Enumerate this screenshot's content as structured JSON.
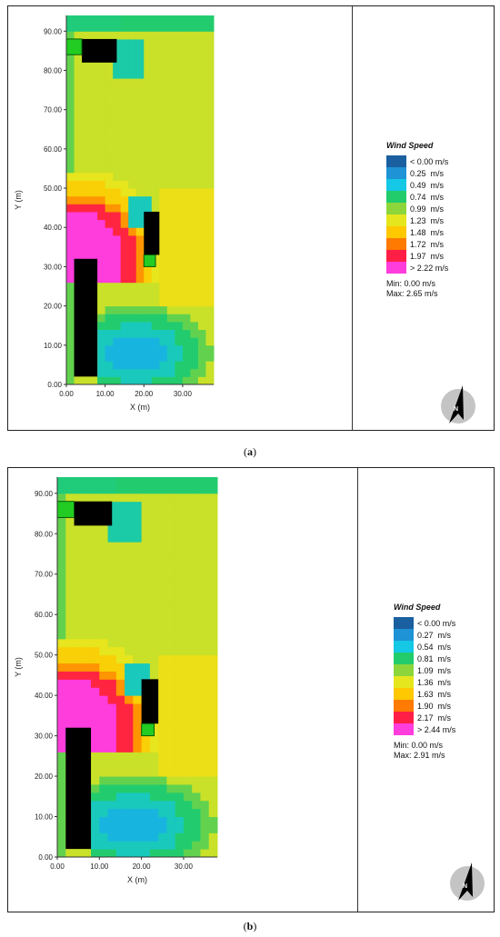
{
  "chart_data": [
    {
      "type": "heatmap",
      "panel": "a",
      "caption_letter": "a",
      "xlabel": "X (m)",
      "ylabel": "Y (m)",
      "xlim": [
        0,
        38
      ],
      "ylim": [
        0,
        94
      ],
      "x_ticks": [
        "0.00",
        "10.00",
        "20.00",
        "30.00"
      ],
      "y_ticks": [
        "0.00",
        "10.00",
        "20.00",
        "30.00",
        "40.00",
        "50.00",
        "60.00",
        "70.00",
        "80.00",
        "90.00"
      ],
      "legend": {
        "title": "Wind Speed",
        "entries": [
          "< 0.00 m/s",
          "0.25  m/s",
          "0.49  m/s",
          "0.74  m/s",
          "0.99  m/s",
          "1.23  m/s",
          "1.48  m/s",
          "1.72  m/s",
          "1.97  m/s",
          "> 2.22 m/s"
        ],
        "colors": [
          "#1a5fa0",
          "#1e93d6",
          "#14c8e6",
          "#22cc6a",
          "#8cd63c",
          "#e6e61e",
          "#ffc800",
          "#ff7a00",
          "#ff1e46",
          "#ff3cdc"
        ],
        "min_text": "Min: 0.00 m/s",
        "max_text": "Max: 2.65 m/s"
      },
      "compass_letter": "N"
    },
    {
      "type": "heatmap",
      "panel": "b",
      "caption_letter": "b",
      "xlabel": "X (m)",
      "ylabel": "Y (m)",
      "xlim": [
        0,
        38
      ],
      "ylim": [
        0,
        94
      ],
      "x_ticks": [
        "0.00",
        "10.00",
        "20.00",
        "30.00"
      ],
      "y_ticks": [
        "0.00",
        "10.00",
        "20.00",
        "30.00",
        "40.00",
        "50.00",
        "60.00",
        "70.00",
        "80.00",
        "90.00"
      ],
      "legend": {
        "title": "Wind Speed",
        "entries": [
          "< 0.00 m/s",
          "0.27  m/s",
          "0.54  m/s",
          "0.81  m/s",
          "1.09  m/s",
          "1.36  m/s",
          "1.63  m/s",
          "1.90  m/s",
          "2.17  m/s",
          "> 2.44 m/s"
        ],
        "colors": [
          "#1a5fa0",
          "#1e93d6",
          "#14c8e6",
          "#22cc6a",
          "#8cd63c",
          "#e6e61e",
          "#ffc800",
          "#ff7a00",
          "#ff1e46",
          "#ff3cdc"
        ],
        "min_text": "Min: 0.00 m/s",
        "max_text": "Max: 2.91 m/s"
      },
      "compass_letter": "N"
    }
  ]
}
